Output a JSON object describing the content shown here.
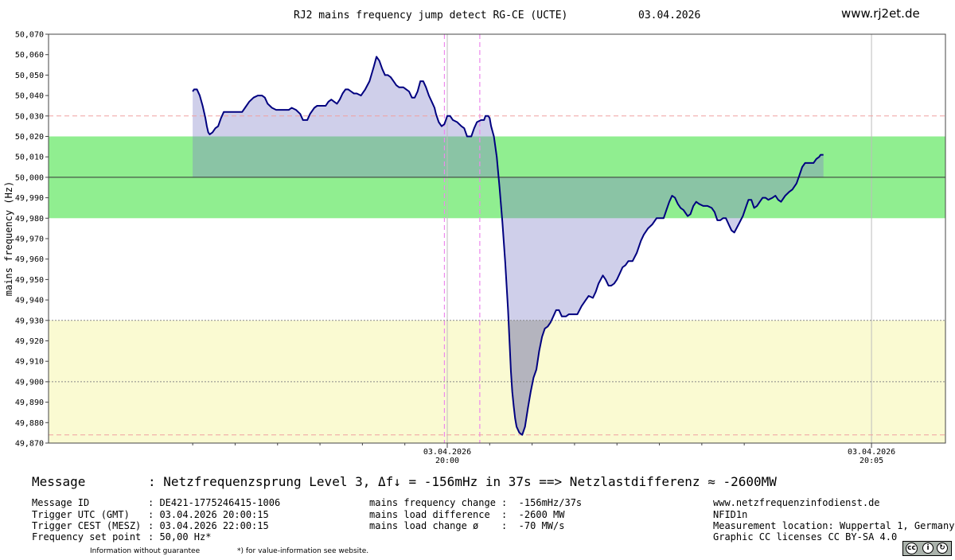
{
  "header": {
    "title": "RJ2 mains frequency jump detect RG-CE (UCTE)",
    "date": "03.04.2026",
    "site": "www.rj2et.de"
  },
  "chart_data": {
    "type": "line",
    "ylabel": "mains frequency (Hz)",
    "ylim": [
      49.87,
      50.07
    ],
    "yticks": [
      "50,070",
      "50,060",
      "50,050",
      "50,040",
      "50,030",
      "50,020",
      "50,010",
      "50,000",
      "49,990",
      "49,980",
      "49,970",
      "49,960",
      "49,950",
      "49,940",
      "49,930",
      "49,920",
      "49,910",
      "49,900",
      "49,890",
      "49,880",
      "49,870"
    ],
    "x_seconds_range": [
      -180,
      236
    ],
    "xticks": [
      {
        "t": 0,
        "date": "03.04.2026",
        "time": "20:00"
      },
      {
        "t": 300,
        "date": "03.04.2026",
        "time": "20:05"
      }
    ],
    "bands": [
      {
        "name": "deadband",
        "from": 49.98,
        "to": 50.02,
        "color": "#90ee90"
      },
      {
        "name": "alert",
        "from": 49.87,
        "to": 49.93,
        "color": "#fafad2"
      }
    ],
    "reference_lines": [
      {
        "value": 50.0,
        "color": "#333333",
        "style": "solid"
      },
      {
        "value": 50.03,
        "color": "#f0a0a0",
        "style": "dashed"
      },
      {
        "value": 49.93,
        "color": "#888888",
        "style": "dotted"
      },
      {
        "value": 49.9,
        "color": "#888888",
        "style": "dotted"
      },
      {
        "value": 49.874,
        "color": "#f0a0a0",
        "style": "dashed"
      }
    ],
    "event_markers_seconds": [
      -2,
      23
    ],
    "setpoint": 50.0,
    "series": [
      {
        "color": "#000080",
        "points": [
          [
            -180,
            50.042
          ],
          [
            -179,
            50.043
          ],
          [
            -177,
            50.043
          ],
          [
            -175,
            50.04
          ],
          [
            -173,
            50.035
          ],
          [
            -171,
            50.029
          ],
          [
            -170,
            50.025
          ],
          [
            -169,
            50.022
          ],
          [
            -168,
            50.021
          ],
          [
            -166,
            50.022
          ],
          [
            -164,
            50.024
          ],
          [
            -162,
            50.025
          ],
          [
            -160,
            50.029
          ],
          [
            -158,
            50.032
          ],
          [
            -155,
            50.032
          ],
          [
            -150,
            50.032
          ],
          [
            -145,
            50.032
          ],
          [
            -143,
            50.034
          ],
          [
            -140,
            50.037
          ],
          [
            -137,
            50.039
          ],
          [
            -134,
            50.04
          ],
          [
            -131,
            50.04
          ],
          [
            -129,
            50.039
          ],
          [
            -127,
            50.036
          ],
          [
            -124,
            50.034
          ],
          [
            -121,
            50.033
          ],
          [
            -117,
            50.033
          ],
          [
            -112,
            50.033
          ],
          [
            -110,
            50.034
          ],
          [
            -107,
            50.033
          ],
          [
            -104,
            50.031
          ],
          [
            -102,
            50.028
          ],
          [
            -99,
            50.028
          ],
          [
            -97,
            50.031
          ],
          [
            -94,
            50.034
          ],
          [
            -92,
            50.035
          ],
          [
            -89,
            50.035
          ],
          [
            -86,
            50.035
          ],
          [
            -84,
            50.037
          ],
          [
            -82,
            50.038
          ],
          [
            -80,
            50.037
          ],
          [
            -78,
            50.036
          ],
          [
            -76,
            50.038
          ],
          [
            -74,
            50.041
          ],
          [
            -72,
            50.043
          ],
          [
            -70,
            50.043
          ],
          [
            -68,
            50.042
          ],
          [
            -66,
            50.041
          ],
          [
            -64,
            50.041
          ],
          [
            -61,
            50.04
          ],
          [
            -58,
            50.043
          ],
          [
            -55,
            50.047
          ],
          [
            -52,
            50.054
          ],
          [
            -50,
            50.059
          ],
          [
            -48,
            50.057
          ],
          [
            -46,
            50.053
          ],
          [
            -44,
            50.05
          ],
          [
            -42,
            50.05
          ],
          [
            -40,
            50.049
          ],
          [
            -38,
            50.047
          ],
          [
            -36,
            50.045
          ],
          [
            -34,
            50.044
          ],
          [
            -31,
            50.044
          ],
          [
            -29,
            50.043
          ],
          [
            -27,
            50.042
          ],
          [
            -25,
            50.039
          ],
          [
            -23,
            50.039
          ],
          [
            -21,
            50.042
          ],
          [
            -19,
            50.047
          ],
          [
            -17,
            50.047
          ],
          [
            -15,
            50.044
          ],
          [
            -13,
            50.04
          ],
          [
            -11,
            50.037
          ],
          [
            -9,
            50.034
          ],
          [
            -8,
            50.031
          ],
          [
            -6,
            50.027
          ],
          [
            -4,
            50.025
          ],
          [
            -2,
            50.026
          ],
          [
            0,
            50.03
          ],
          [
            2,
            50.03
          ],
          [
            4,
            50.028
          ],
          [
            7,
            50.027
          ],
          [
            10,
            50.025
          ],
          [
            12,
            50.024
          ],
          [
            14,
            50.02
          ],
          [
            17,
            50.02
          ],
          [
            19,
            50.024
          ],
          [
            21,
            50.027
          ],
          [
            24,
            50.028
          ],
          [
            26,
            50.028
          ],
          [
            27,
            50.03
          ],
          [
            29,
            50.03
          ],
          [
            30,
            50.029
          ],
          [
            31,
            50.025
          ],
          [
            33,
            50.02
          ],
          [
            35,
            50.01
          ],
          [
            37,
            49.995
          ],
          [
            39,
            49.978
          ],
          [
            41,
            49.958
          ],
          [
            43,
            49.935
          ],
          [
            44,
            49.92
          ],
          [
            45,
            49.905
          ],
          [
            46,
            49.895
          ],
          [
            47,
            49.888
          ],
          [
            48,
            49.882
          ],
          [
            49,
            49.878
          ],
          [
            51,
            49.875
          ],
          [
            53,
            49.874
          ],
          [
            55,
            49.878
          ],
          [
            57,
            49.887
          ],
          [
            59,
            49.895
          ],
          [
            61,
            49.902
          ],
          [
            63,
            49.906
          ],
          [
            65,
            49.915
          ],
          [
            67,
            49.922
          ],
          [
            69,
            49.926
          ],
          [
            71,
            49.927
          ],
          [
            73,
            49.929
          ],
          [
            75,
            49.932
          ],
          [
            77,
            49.935
          ],
          [
            79,
            49.935
          ],
          [
            81,
            49.932
          ],
          [
            84,
            49.932
          ],
          [
            86,
            49.933
          ],
          [
            89,
            49.933
          ],
          [
            92,
            49.933
          ],
          [
            95,
            49.937
          ],
          [
            98,
            49.94
          ],
          [
            100,
            49.942
          ],
          [
            103,
            49.941
          ],
          [
            105,
            49.944
          ],
          [
            107,
            49.948
          ],
          [
            110,
            49.952
          ],
          [
            112,
            49.95
          ],
          [
            114,
            49.947
          ],
          [
            116,
            49.947
          ],
          [
            118,
            49.948
          ],
          [
            120,
            49.95
          ],
          [
            122,
            49.953
          ],
          [
            124,
            49.956
          ],
          [
            126,
            49.957
          ],
          [
            128,
            49.959
          ],
          [
            131,
            49.959
          ],
          [
            134,
            49.963
          ],
          [
            137,
            49.969
          ],
          [
            139,
            49.972
          ],
          [
            142,
            49.975
          ],
          [
            145,
            49.977
          ],
          [
            148,
            49.98
          ],
          [
            150,
            49.98
          ],
          [
            153,
            49.98
          ],
          [
            155,
            49.984
          ],
          [
            157,
            49.988
          ],
          [
            159,
            49.991
          ],
          [
            161,
            49.99
          ],
          [
            163,
            49.987
          ],
          [
            165,
            49.985
          ],
          [
            167,
            49.984
          ],
          [
            170,
            49.981
          ],
          [
            172,
            49.982
          ],
          [
            174,
            49.986
          ],
          [
            176,
            49.988
          ],
          [
            178,
            49.987
          ],
          [
            181,
            49.986
          ],
          [
            184,
            49.986
          ],
          [
            187,
            49.985
          ],
          [
            189,
            49.983
          ],
          [
            191,
            49.979
          ],
          [
            193,
            49.979
          ],
          [
            195,
            49.98
          ],
          [
            197,
            49.98
          ],
          [
            199,
            49.977
          ],
          [
            201,
            49.974
          ],
          [
            203,
            49.973
          ],
          [
            206,
            49.977
          ],
          [
            209,
            49.981
          ],
          [
            211,
            49.985
          ],
          [
            213,
            49.989
          ],
          [
            215,
            49.989
          ],
          [
            217,
            49.985
          ],
          [
            219,
            49.986
          ],
          [
            221,
            49.988
          ],
          [
            223,
            49.99
          ],
          [
            225,
            49.99
          ],
          [
            227,
            49.989
          ],
          [
            230,
            49.99
          ],
          [
            232,
            49.991
          ],
          [
            234,
            49.989
          ],
          [
            236,
            49.988
          ],
          [
            239,
            49.991
          ],
          [
            242,
            49.993
          ],
          [
            244,
            49.994
          ],
          [
            247,
            49.997
          ],
          [
            249,
            50.001
          ],
          [
            251,
            50.005
          ],
          [
            253,
            50.007
          ],
          [
            256,
            50.007
          ],
          [
            259,
            50.007
          ],
          [
            261,
            50.009
          ],
          [
            263,
            50.01
          ],
          [
            264,
            50.011
          ],
          [
            266,
            50.011
          ]
        ]
      }
    ]
  },
  "message": {
    "label": "Message",
    "text": ": Netzfrequenzsprung Level 3, Δf↓ = -156mHz in 37s ==> Netzlastdifferenz ≈ -2600MW"
  },
  "details_left": [
    {
      "label": "Message ID",
      "value": ": DE421-1775246415-1006"
    },
    {
      "label": "Trigger UTC (GMT)",
      "value": ": 03.04.2026 20:00:15"
    },
    {
      "label": "Trigger CEST (MESZ)",
      "value": ": 03.04.2026 22:00:15"
    },
    {
      "label": "Frequency set point",
      "value": ": 50,00 Hz*"
    }
  ],
  "details_mid": [
    {
      "label": "mains frequency change",
      "value": ":  -156mHz/37s"
    },
    {
      "label": "mains load difference",
      "value": ":  -2600 MW"
    },
    {
      "label": "mains load change ø",
      "value": ":  -70 MW/s"
    }
  ],
  "details_right": [
    "www.netzfrequenzinfodienst.de",
    "NFID1n",
    "Measurement location: Wuppertal 1, Germany",
    "Graphic CC licenses CC BY-SA 4.0"
  ],
  "footer": {
    "guarantee": "Information without guarantee",
    "note": "*) for value-information see website."
  },
  "license_badge": {
    "cc": "cc",
    "by": "i",
    "sa": "↻",
    "text": "BY  SA"
  }
}
